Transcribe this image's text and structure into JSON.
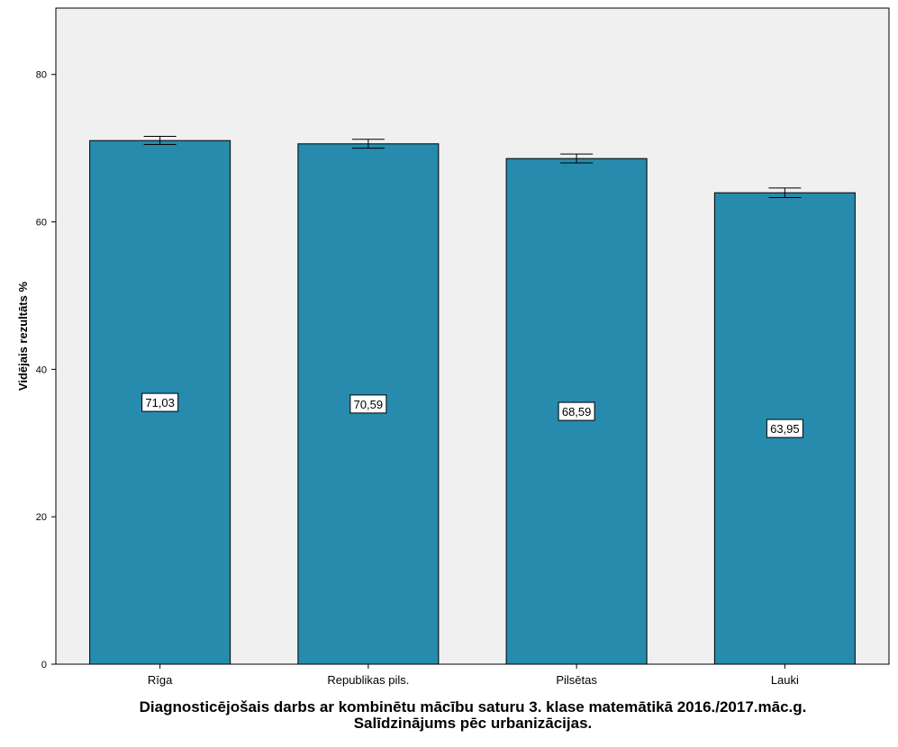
{
  "chart_data": {
    "type": "bar",
    "categories": [
      "Rīga",
      "Republikas pils.",
      "Pilsētas",
      "Lauki"
    ],
    "values": [
      71.03,
      70.59,
      68.59,
      63.95
    ],
    "data_labels": [
      "71,03",
      "70,59",
      "68,59",
      "63,95"
    ],
    "error_bars": [
      {
        "low": 70.5,
        "high": 71.6
      },
      {
        "low": 70.0,
        "high": 71.2
      },
      {
        "low": 68.0,
        "high": 69.2
      },
      {
        "low": 63.3,
        "high": 64.6
      }
    ],
    "title": "Diagnosticējošais darbs ar kombinētu mācību saturu 3. klase matemātikā 2016./2017.māc.g.",
    "subtitle": "Salīdzinājums pēc urbanizācijas.",
    "xlabel": "",
    "ylabel": "Vidējais rezultāts %",
    "ylim": [
      0,
      89
    ],
    "yticks": [
      0,
      20,
      40,
      60,
      80
    ],
    "grid": false,
    "colors": {
      "bar": "#268bad",
      "plot_background": "#f0f0f0"
    }
  }
}
